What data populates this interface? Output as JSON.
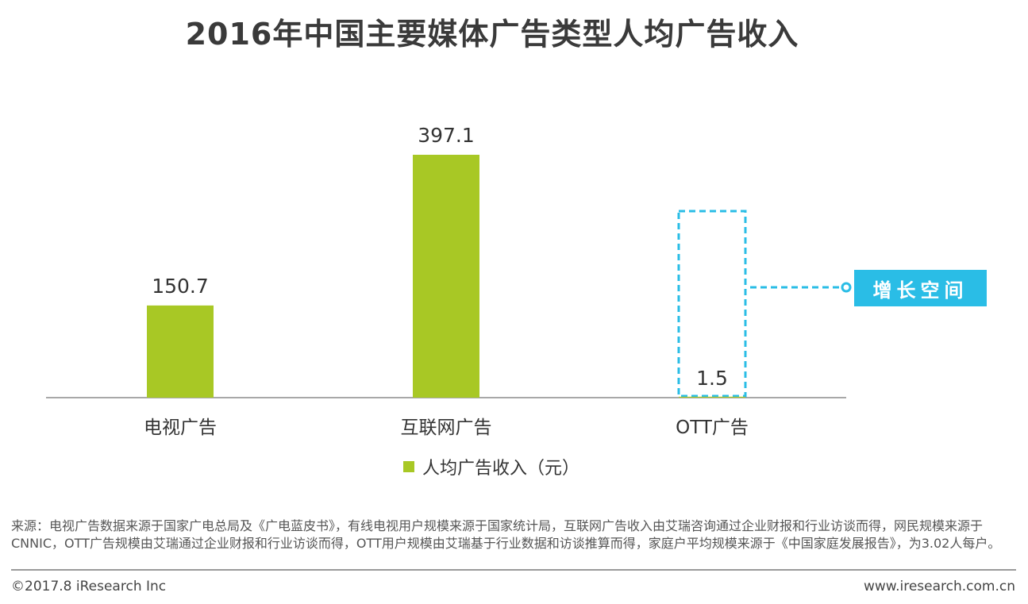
{
  "title": "2016年中国主要媒体广告类型人均广告收入",
  "chart_data": {
    "type": "bar",
    "categories": [
      "电视广告",
      "互联网广告",
      "OTT广告"
    ],
    "series": [
      {
        "name": "人均广告收入（元）",
        "values": [
          150.7,
          397.1,
          1.5
        ]
      }
    ],
    "value_labels": [
      "150.7",
      "397.1",
      "1.5"
    ],
    "ylim": [
      0,
      450
    ],
    "grid": false,
    "legend_position": "bottom",
    "bar_color": "#a8c825",
    "highlight_color": "#2abde6",
    "highlight_category": "OTT广告",
    "annotation": "增长空间"
  },
  "legend": {
    "label": "人均广告收入（元）"
  },
  "footer": {
    "source": "来源：电视广告数据来源于国家广电总局及《广电蓝皮书》，有线电视用户规模来源于国家统计局，互联网广告收入由艾瑞咨询通过企业财报和行业访谈而得，网民规模来源于CNNIC，OTT广告规模由艾瑞通过企业财报和行业访谈而得，OTT用户规模由艾瑞基于行业数据和访谈推算而得，家庭户平均规模来源于《中国家庭发展报告》，为3.02人每户。",
    "copyright": "©2017.8 iResearch Inc",
    "website": "www.iresearch.com.cn"
  }
}
